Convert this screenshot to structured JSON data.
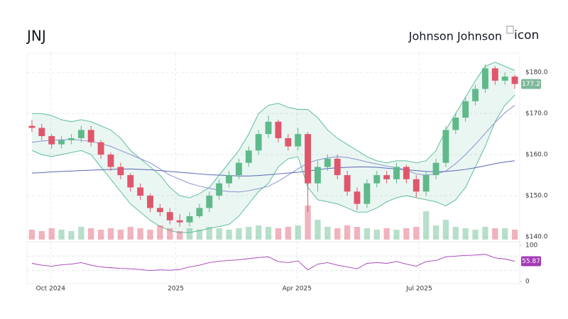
{
  "chart_data": {
    "type": "candlestick",
    "title": "JNJ",
    "subtitle": "Johnson Johnson",
    "logo_alt": "icon",
    "x": [
      0,
      1,
      2,
      3,
      4,
      5,
      6,
      7,
      8,
      9,
      10,
      11,
      12,
      13,
      14,
      15,
      16,
      17,
      18,
      19,
      20,
      21,
      22,
      23,
      24,
      25,
      26,
      27,
      28,
      29,
      30,
      31,
      32,
      33,
      34,
      35,
      36,
      37,
      38,
      39,
      40,
      41,
      42,
      43,
      44,
      45,
      46,
      47,
      48,
      49
    ],
    "open": [
      167,
      166.5,
      164.5,
      162.5,
      163.5,
      164,
      166,
      163,
      160,
      157,
      155,
      152,
      150,
      147,
      146,
      144,
      143.5,
      145,
      147,
      150,
      153,
      155,
      158,
      161,
      165,
      168,
      164,
      162,
      165,
      153,
      157,
      159,
      155,
      151,
      148,
      153,
      155,
      154,
      157,
      154,
      151,
      155,
      158,
      166,
      169,
      173,
      176,
      181,
      178,
      179
    ],
    "high": [
      168.5,
      167.5,
      165,
      164.5,
      165,
      167,
      167,
      163.5,
      160.5,
      158,
      155.5,
      153,
      150.5,
      148,
      147,
      145.5,
      146,
      148,
      151,
      154,
      156,
      159,
      162,
      166,
      169.5,
      168.5,
      165,
      166.5,
      165.5,
      158.5,
      160,
      160,
      156,
      152,
      154,
      156,
      156,
      158,
      157.5,
      155,
      156,
      159,
      167,
      170,
      174,
      177,
      182,
      181.5,
      180,
      179.5
    ],
    "low": [
      165.5,
      163.5,
      161.5,
      161.5,
      162.5,
      163,
      162,
      159,
      156,
      154,
      151,
      149,
      146,
      145,
      143,
      142.5,
      142.5,
      144.5,
      146,
      149,
      152,
      154,
      157,
      160,
      164,
      163,
      161,
      161,
      146,
      151,
      156,
      154,
      150,
      146.5,
      147,
      152,
      153,
      153,
      153,
      149.5,
      150,
      154,
      157,
      165,
      168,
      172,
      175,
      177,
      177,
      176
    ],
    "close": [
      166.5,
      164.5,
      162.5,
      163.5,
      164,
      166,
      163,
      160,
      157,
      155,
      152,
      150,
      147,
      146,
      144,
      143.5,
      145,
      147,
      150,
      153,
      155,
      158,
      161,
      165,
      168,
      164,
      162,
      165,
      153,
      157,
      159,
      155,
      151,
      148,
      153,
      155,
      154,
      157,
      154,
      151,
      155,
      158,
      166,
      169,
      173,
      176,
      181,
      178,
      179,
      177.2
    ],
    "up_color": "#5fb98a",
    "down_color": "#e0566c",
    "xlim": [
      -0.5,
      49.5
    ],
    "xticks": [
      {
        "value": 1.9,
        "label": "Oct 2024"
      },
      {
        "value": 14.6,
        "label": "2025"
      },
      {
        "value": 26.9,
        "label": "Apr 2025"
      },
      {
        "value": 39.3,
        "label": "Jul 2025"
      }
    ],
    "ylim": [
      139.3,
      184.7
    ],
    "yticks": [
      {
        "value": 140,
        "label": "$140.0"
      },
      {
        "value": 150,
        "label": "$150.0"
      },
      {
        "value": 160,
        "label": "$160.0"
      },
      {
        "value": 170,
        "label": "$170.0"
      },
      {
        "value": 180,
        "label": "$180.0"
      }
    ],
    "grid": true,
    "bands": {
      "color": "#4fb894",
      "upper": [
        170,
        170,
        169.5,
        168.5,
        168,
        168.5,
        168,
        167,
        166,
        164,
        161,
        159,
        157,
        155,
        152,
        150,
        149.5,
        150.5,
        152,
        155,
        158,
        161,
        165,
        170,
        172,
        172.5,
        171.5,
        171,
        171,
        169,
        166,
        164,
        162.5,
        161,
        159.5,
        158.5,
        158,
        158.5,
        158.5,
        158,
        158.5,
        161,
        166,
        170,
        174,
        178,
        181.5,
        182.5,
        181.5,
        180.5
      ],
      "lower": [
        161,
        160,
        159.5,
        160,
        160.5,
        161,
        160,
        157,
        154,
        151,
        148,
        146,
        144,
        142.5,
        141.5,
        141,
        141,
        141.5,
        142,
        142.5,
        143,
        145,
        148,
        151,
        153,
        157,
        159,
        159.5,
        152,
        149,
        148.5,
        148,
        147,
        146,
        146,
        147,
        148.5,
        149.5,
        150,
        149.5,
        149,
        148.5,
        147.5,
        149,
        152,
        157,
        162,
        168,
        172,
        174.5
      ]
    },
    "series": [
      {
        "color": "#8a93cf",
        "values": [
          163,
          163.3,
          163.5,
          163.6,
          163.7,
          163.5,
          163.2,
          162.7,
          162,
          161,
          160,
          159,
          158,
          156.5,
          155,
          154,
          153,
          152.3,
          151.8,
          151.3,
          151,
          150.9,
          151.2,
          151.7,
          152.3,
          153.5,
          155,
          156.5,
          158,
          158.7,
          159.2,
          159.5,
          159.3,
          158.8,
          158.2,
          157.7,
          157.2,
          156.8,
          156.2,
          155.3,
          155,
          155.3,
          156,
          157.8,
          160,
          162.5,
          165.2,
          167.8,
          170.2,
          172
        ]
      },
      {
        "color": "#5866b4",
        "values": [
          155.5,
          155.6,
          155.8,
          155.9,
          156,
          156.1,
          156.2,
          156.3,
          156.4,
          156.5,
          156.5,
          156.4,
          156.3,
          156.1,
          155.9,
          155.7,
          155.5,
          155.3,
          155.1,
          155,
          154.9,
          154.8,
          154.8,
          154.9,
          155.1,
          155.3,
          155.5,
          155.7,
          156,
          156.3,
          156.6,
          156.8,
          156.9,
          157,
          157,
          156.9,
          156.7,
          156.5,
          156.3,
          156.1,
          155.9,
          155.8,
          155.9,
          156.1,
          156.4,
          156.8,
          157.3,
          157.8,
          158.2,
          158.5
        ]
      }
    ],
    "price_tag_color": "#7fb89b",
    "volume": {
      "vlim": [
        0,
        40
      ],
      "values": [
        7,
        6,
        8,
        7,
        6,
        9,
        8,
        7,
        8,
        7,
        9,
        8,
        7,
        10,
        8,
        6,
        8,
        7,
        9,
        8,
        7,
        8,
        9,
        10,
        9,
        8,
        9,
        10,
        24,
        14,
        9,
        8,
        10,
        9,
        8,
        7,
        8,
        7,
        8,
        9,
        20,
        10,
        14,
        9,
        8,
        7,
        9,
        8,
        8,
        7
      ]
    },
    "rsi": {
      "color": "#a23bb5",
      "ylim": [
        0,
        100
      ],
      "yticks": [
        0,
        100
      ],
      "levels": [
        30,
        70
      ],
      "values": [
        50,
        45,
        42,
        46,
        48,
        52,
        45,
        40,
        38,
        36,
        35,
        33,
        30,
        32,
        31,
        33,
        40,
        45,
        52,
        56,
        58,
        60,
        63,
        66,
        68,
        55,
        52,
        57,
        32,
        48,
        52,
        45,
        40,
        35,
        50,
        52,
        50,
        55,
        48,
        42,
        55,
        58,
        68,
        70,
        72,
        73,
        75,
        65,
        62,
        55.87
      ]
    }
  }
}
